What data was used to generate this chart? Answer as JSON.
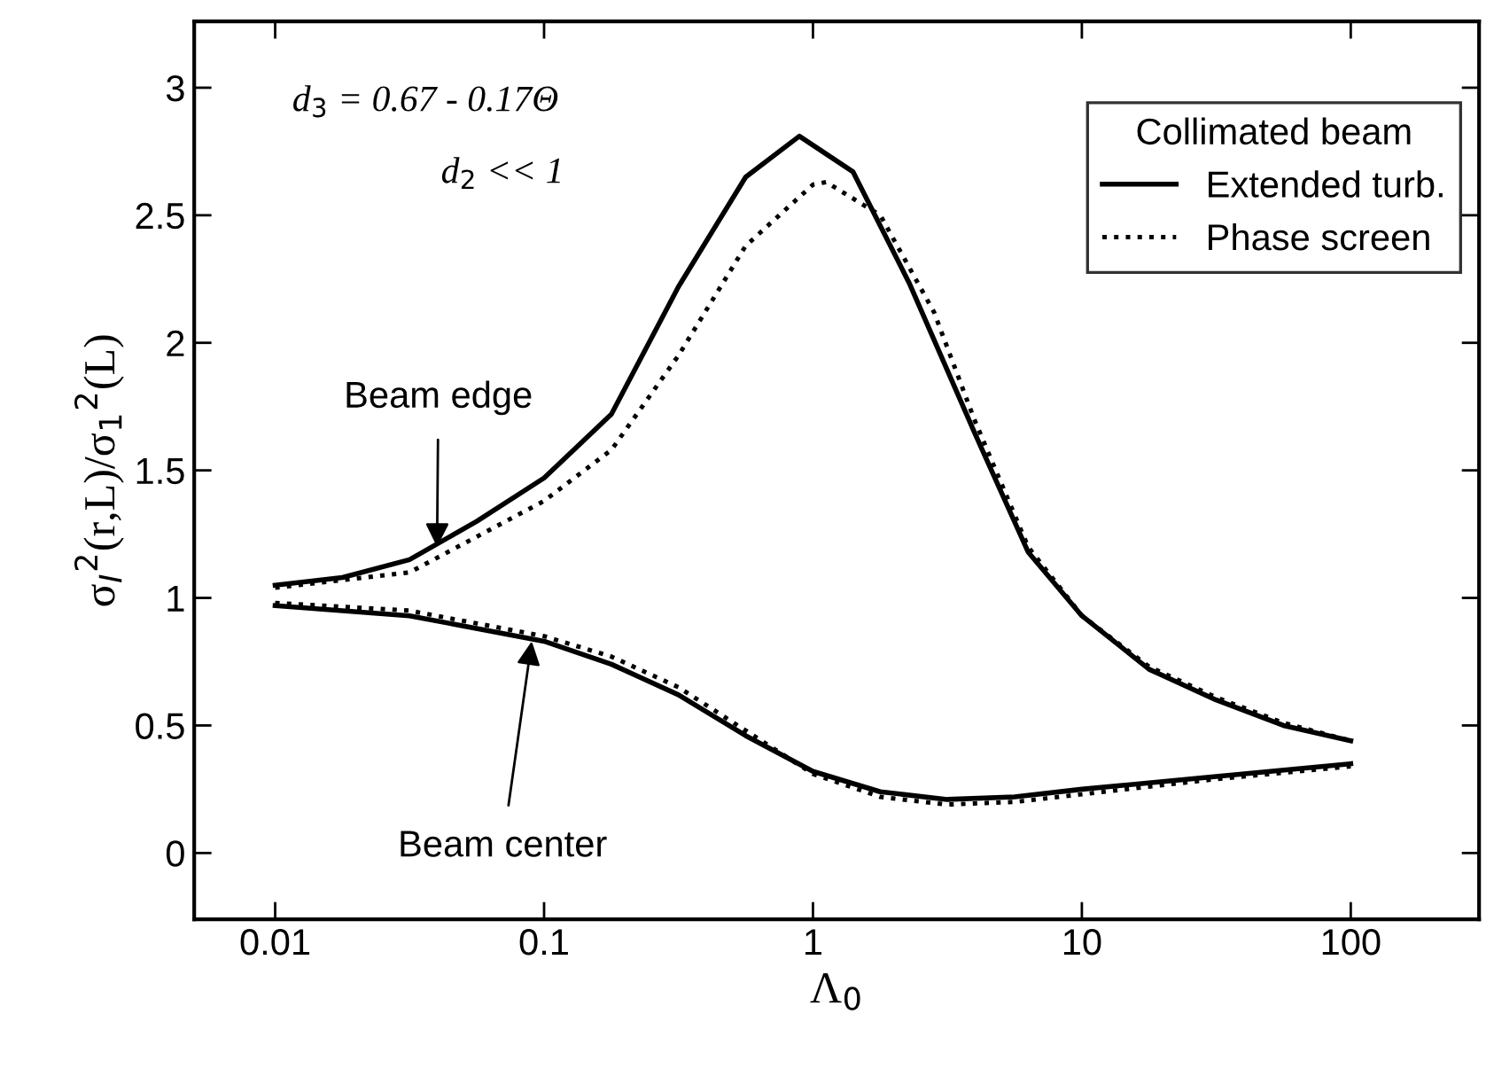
{
  "chart_data": {
    "type": "line",
    "xlabel": "Λ$_{0}$",
    "ylabel": "σ$_{I}$$^{2}$(r,L)/σ$_{1}$$^{2}$(L)",
    "legend_title": "Collimated beam",
    "legend": "top right",
    "log": "x",
    "grid": false,
    "xlim": [
      0.005,
      300
    ],
    "xticks": [
      0.01,
      0.1,
      1,
      10,
      100
    ],
    "ylim": [
      -0.26,
      3.26
    ],
    "yticks": [
      0,
      0.5,
      1,
      1.5,
      2,
      2.5,
      3
    ],
    "series": [
      {
        "name": "Extended turb.",
        "color": "#000000",
        "line_style": "solid",
        "x": [
          0.01,
          0.0178,
          0.0316,
          0.0562,
          0.1,
          0.178,
          0.316,
          0.562,
          0.89,
          1.41,
          2.29,
          3.98,
          6.31,
          10,
          17.8,
          31.6,
          56.2,
          100
        ],
        "values": [
          1.05,
          1.08,
          1.15,
          1.3,
          1.47,
          1.72,
          2.22,
          2.65,
          2.81,
          2.67,
          2.23,
          1.65,
          1.18,
          0.93,
          0.72,
          0.6,
          0.5,
          0.44
        ]
      },
      {
        "name": "Phase screen",
        "color": "#000000",
        "line_style": "dotted",
        "x": [
          0.01,
          0.0316,
          0.1,
          0.178,
          0.316,
          0.562,
          1,
          1.12,
          1.78,
          2.82,
          3.98,
          6.31,
          10,
          17.8,
          31.6,
          56.2,
          100
        ],
        "values": [
          1.04,
          1.1,
          1.38,
          1.58,
          1.95,
          2.38,
          2.62,
          2.63,
          2.5,
          2.12,
          1.7,
          1.2,
          0.93,
          0.73,
          0.61,
          0.51,
          0.44
        ]
      },
      {
        "color": "#000000",
        "line_style": "solid",
        "x": [
          0.01,
          0.0316,
          0.1,
          0.178,
          0.316,
          0.562,
          1,
          1.78,
          3.16,
          5.62,
          10,
          31.6,
          100
        ],
        "values": [
          0.97,
          0.93,
          0.83,
          0.74,
          0.62,
          0.46,
          0.32,
          0.24,
          0.21,
          0.22,
          0.25,
          0.3,
          0.35
        ]
      },
      {
        "color": "#000000",
        "line_style": "dotted",
        "x": [
          0.01,
          0.0316,
          0.1,
          0.178,
          0.316,
          0.562,
          1,
          1.78,
          3.16,
          5.62,
          10,
          31.6,
          100
        ],
        "values": [
          0.98,
          0.95,
          0.85,
          0.77,
          0.65,
          0.48,
          0.31,
          0.22,
          0.19,
          0.2,
          0.23,
          0.29,
          0.34
        ]
      }
    ],
    "annotations": [
      "d$_{3}$ = 0.67 - 0.17Θ",
      "d$_{2}$ << 1",
      {
        "text": "Beam edge",
        "x": 0.04,
        "y": 1.2
      },
      {
        "text": "Beam center",
        "x": 0.09,
        "y": 0.83
      }
    ]
  }
}
